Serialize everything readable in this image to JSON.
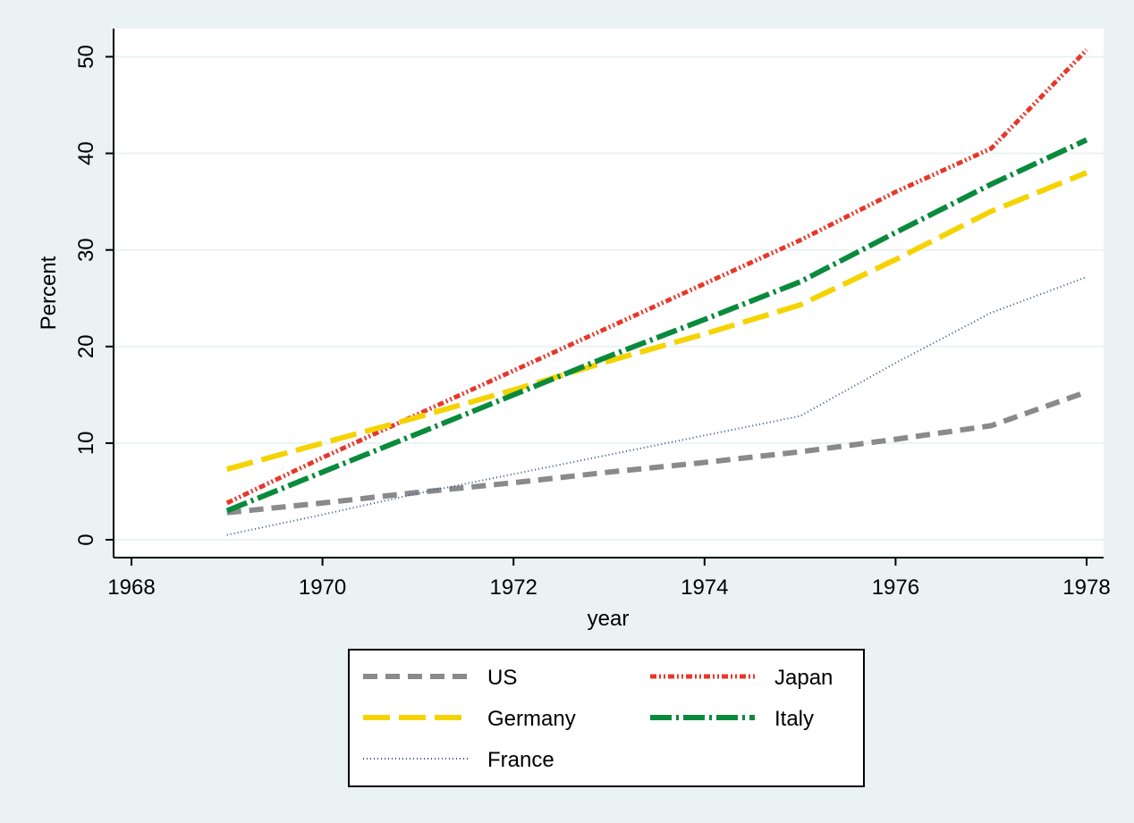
{
  "chart_data": {
    "type": "line",
    "title": "",
    "xlabel": "year",
    "ylabel": "Percent",
    "xlim": [
      1968,
      1978
    ],
    "ylim": [
      0,
      52
    ],
    "x_ticks": [
      1968,
      1970,
      1972,
      1974,
      1976,
      1978
    ],
    "y_ticks": [
      0,
      10,
      20,
      30,
      40,
      50
    ],
    "grid": true,
    "legend_position": "bottom",
    "x": [
      1969,
      1970,
      1971,
      1972,
      1973,
      1974,
      1975,
      1976,
      1977,
      1978
    ],
    "series": [
      {
        "name": "US",
        "color": "#8a8a8a",
        "dash": "dash",
        "values": [
          2.8,
          3.8,
          4.9,
          5.9,
          7.0,
          8.0,
          9.1,
          10.4,
          11.8,
          15.3
        ]
      },
      {
        "name": "Japan",
        "color": "#e8372a",
        "dash": "dash-dot-dot",
        "values": [
          3.8,
          8.5,
          13.0,
          17.5,
          22.0,
          26.5,
          31.0,
          36.0,
          40.5,
          50.7
        ]
      },
      {
        "name": "Germany",
        "color": "#f5d300",
        "dash": "long-dash",
        "values": [
          7.3,
          10.0,
          12.7,
          15.5,
          18.5,
          21.3,
          24.3,
          29.0,
          34.0,
          38.0
        ]
      },
      {
        "name": "Italy",
        "color": "#0a8a3c",
        "dash": "dash-dot",
        "values": [
          3.0,
          7.0,
          11.0,
          15.0,
          19.0,
          22.8,
          26.7,
          31.8,
          36.8,
          41.4
        ]
      },
      {
        "name": "France",
        "color": "#3a4f8f",
        "dash": "dot",
        "values": [
          0.5,
          2.6,
          4.8,
          6.8,
          8.8,
          10.8,
          12.8,
          18.3,
          23.5,
          27.2
        ]
      }
    ]
  }
}
